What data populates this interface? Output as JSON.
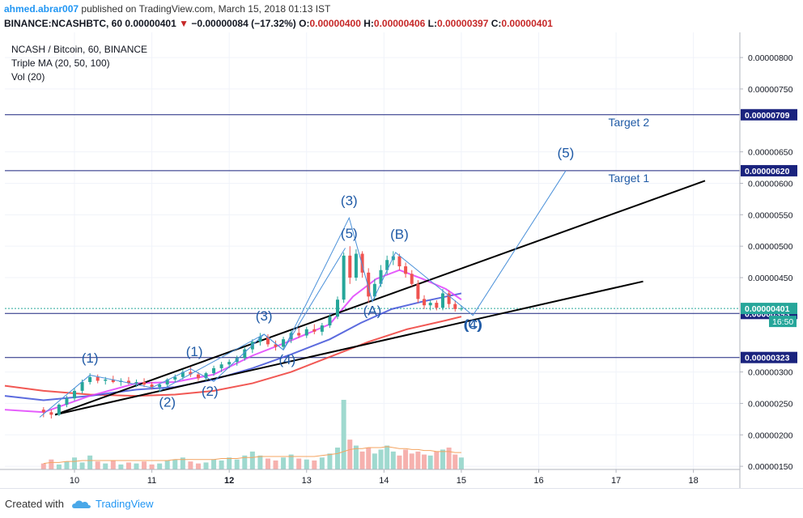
{
  "header": {
    "author": "ahmed.abrar007",
    "published_text": "published on TradingView.com, March 15, 2018 01:13 IST",
    "symbol_line_prefix": "BINANCE:NCASHBTC, 60",
    "last_price": "0.00000401",
    "change_arrow": "▼",
    "change": "−0.00000084 (−17.32%)",
    "open_label": "O:",
    "open": "0.00000400",
    "high_label": "H:",
    "high": "0.00000406",
    "low_label": "L:",
    "low": "0.00000397",
    "close_label": "C:",
    "close": "0.00000401"
  },
  "legend": {
    "symbol": "NCASH / Bitcoin, 60, BINANCE",
    "ma": "Triple MA (20, 50, 100)",
    "vol": "Vol (20)"
  },
  "colors": {
    "up": "#26a69a",
    "down": "#ef5350",
    "ma20": "#e040fb",
    "ma50": "#3f51d8",
    "ma100": "#ef3b36",
    "annotation": "#1f5aa6",
    "wave_line": "#4a90d9",
    "target_line": "#1a237e",
    "vol_up": "#9fd9cf",
    "vol_down": "#f6b1ae"
  },
  "footer": {
    "created_with": "Created with",
    "brand": "TradingView"
  },
  "chart_data": {
    "type": "candlestick",
    "x_tick_labels": [
      "10",
      "11",
      "12",
      "13",
      "14",
      "15",
      "16",
      "17",
      "18"
    ],
    "x_bold_ticks": [
      "12"
    ],
    "x_range": [
      9.1,
      18.6
    ],
    "y_range": [
      1.45e-06,
      8.4e-06
    ],
    "y_tick_labels": [
      "0.00000800",
      "0.00000750",
      "0.00000650",
      "0.00000600",
      "0.00000550",
      "0.00000500",
      "0.00000450",
      "0.00000300",
      "0.00000250",
      "0.00000200",
      "0.00000150"
    ],
    "y_tick_values": [
      8e-06,
      7.5e-06,
      6.5e-06,
      6e-06,
      5.5e-06,
      5e-06,
      4.5e-06,
      3e-06,
      2.5e-06,
      2e-06,
      1.5e-06
    ],
    "horizontal_levels": [
      {
        "value": 7.09e-06,
        "label": "0.00000709",
        "annotation": "Target 2"
      },
      {
        "value": 6.2e-06,
        "label": "0.00000620",
        "annotation": "Target 1"
      },
      {
        "value": 3.93e-06,
        "label": "0.00000393"
      },
      {
        "value": 3.23e-06,
        "label": "0.00000323"
      }
    ],
    "last_price_label": {
      "value": 4.01e-06,
      "label": "0.00000401",
      "countdown": "16:50"
    },
    "trend_lines": [
      [
        [
          9.75,
          2.32e-06
        ],
        [
          17.35,
          4.44e-06
        ]
      ],
      [
        [
          9.75,
          2.32e-06
        ],
        [
          18.15,
          6.04e-06
        ]
      ]
    ],
    "wave_lines": [
      {
        "name": "motive",
        "points": [
          [
            9.55,
            2.28e-06
          ],
          [
            10.2,
            2.95e-06
          ],
          [
            11.0,
            2.75e-06
          ],
          [
            11.5,
            3.05e-06
          ],
          [
            11.8,
            2.85e-06
          ],
          [
            12.45,
            3.6e-06
          ],
          [
            12.7,
            3.35e-06
          ],
          [
            13.55,
            5.45e-06
          ],
          [
            13.85,
            4.12e-06
          ],
          [
            14.15,
            4.9e-06
          ],
          [
            15.15,
            3.9e-06
          ],
          [
            16.35,
            6.2e-06
          ]
        ]
      },
      {
        "name": "inner",
        "points": [
          [
            11.1,
            2.7e-06
          ],
          [
            12.45,
            3.6e-06
          ],
          [
            12.7,
            3.35e-06
          ],
          [
            13.5,
            4.97e-06
          ]
        ]
      }
    ],
    "wave_labels": [
      {
        "text": "(1)",
        "x": 10.2,
        "y": 3.15e-06
      },
      {
        "text": "(2)",
        "x": 11.2,
        "y": 2.45e-06
      },
      {
        "text": "(1)",
        "x": 11.55,
        "y": 3.25e-06
      },
      {
        "text": "(2)",
        "x": 11.75,
        "y": 2.62e-06
      },
      {
        "text": "(3)",
        "x": 12.45,
        "y": 3.82e-06
      },
      {
        "text": "(4)",
        "x": 12.75,
        "y": 3.12e-06
      },
      {
        "text": "(3)",
        "x": 13.55,
        "y": 5.65e-06
      },
      {
        "text": "(5)",
        "x": 13.55,
        "y": 5.13e-06
      },
      {
        "text": "(A)",
        "x": 13.85,
        "y": 3.9e-06
      },
      {
        "text": "(B)",
        "x": 14.2,
        "y": 5.12e-06
      },
      {
        "text": "(4)",
        "x": 15.15,
        "y": 3.68e-06
      },
      {
        "text": "(C)",
        "x": 15.15,
        "y": 3.68e-06
      },
      {
        "text": "(5)",
        "x": 16.35,
        "y": 6.41e-06
      }
    ],
    "candles": [
      [
        9.6,
        2.4e-06,
        2.44e-06,
        2.28e-06,
        2.36e-06
      ],
      [
        9.7,
        2.36e-06,
        2.4e-06,
        2.26e-06,
        2.32e-06
      ],
      [
        9.8,
        2.32e-06,
        2.5e-06,
        2.3e-06,
        2.48e-06
      ],
      [
        9.9,
        2.48e-06,
        2.62e-06,
        2.44e-06,
        2.58e-06
      ],
      [
        10.0,
        2.58e-06,
        2.75e-06,
        2.54e-06,
        2.7e-06
      ],
      [
        10.1,
        2.7e-06,
        2.88e-06,
        2.66e-06,
        2.84e-06
      ],
      [
        10.2,
        2.84e-06,
        2.98e-06,
        2.8e-06,
        2.92e-06
      ],
      [
        10.3,
        2.92e-06,
        2.96e-06,
        2.82e-06,
        2.86e-06
      ],
      [
        10.4,
        2.86e-06,
        2.92e-06,
        2.8e-06,
        2.88e-06
      ],
      [
        10.5,
        2.88e-06,
        2.94e-06,
        2.82e-06,
        2.84e-06
      ],
      [
        10.6,
        2.84e-06,
        2.9e-06,
        2.78e-06,
        2.86e-06
      ],
      [
        10.7,
        2.86e-06,
        2.92e-06,
        2.8e-06,
        2.82e-06
      ],
      [
        10.8,
        2.82e-06,
        2.88e-06,
        2.76e-06,
        2.84e-06
      ],
      [
        10.9,
        2.84e-06,
        2.9e-06,
        2.76e-06,
        2.8e-06
      ],
      [
        11.0,
        2.8e-06,
        2.84e-06,
        2.72e-06,
        2.76e-06
      ],
      [
        11.1,
        2.76e-06,
        2.82e-06,
        2.68e-06,
        2.8e-06
      ],
      [
        11.2,
        2.8e-06,
        2.9e-06,
        2.76e-06,
        2.88e-06
      ],
      [
        11.3,
        2.88e-06,
        2.96e-06,
        2.84e-06,
        2.92e-06
      ],
      [
        11.4,
        2.92e-06,
        3.04e-06,
        2.88e-06,
        3e-06
      ],
      [
        11.5,
        3e-06,
        3.08e-06,
        2.92e-06,
        2.96e-06
      ],
      [
        11.6,
        2.96e-06,
        3e-06,
        2.86e-06,
        2.9e-06
      ],
      [
        11.7,
        2.9e-06,
        3e-06,
        2.86e-06,
        2.98e-06
      ],
      [
        11.8,
        2.98e-06,
        3.1e-06,
        2.94e-06,
        3.06e-06
      ],
      [
        11.9,
        3.06e-06,
        3.16e-06,
        3e-06,
        3.12e-06
      ],
      [
        12.0,
        3.12e-06,
        3.2e-06,
        3.06e-06,
        3.16e-06
      ],
      [
        12.1,
        3.16e-06,
        3.26e-06,
        3.1e-06,
        3.22e-06
      ],
      [
        12.2,
        3.22e-06,
        3.4e-06,
        3.18e-06,
        3.36e-06
      ],
      [
        12.3,
        3.36e-06,
        3.52e-06,
        3.3e-06,
        3.48e-06
      ],
      [
        12.4,
        3.48e-06,
        3.62e-06,
        3.42e-06,
        3.56e-06
      ],
      [
        12.5,
        3.56e-06,
        3.6e-06,
        3.4e-06,
        3.44e-06
      ],
      [
        12.6,
        3.44e-06,
        3.5e-06,
        3.34e-06,
        3.4e-06
      ],
      [
        12.7,
        3.4e-06,
        3.56e-06,
        3.36e-06,
        3.52e-06
      ],
      [
        12.8,
        3.52e-06,
        3.66e-06,
        3.46e-06,
        3.62e-06
      ],
      [
        12.9,
        3.62e-06,
        3.7e-06,
        3.54e-06,
        3.58e-06
      ],
      [
        13.0,
        3.58e-06,
        3.72e-06,
        3.54e-06,
        3.68e-06
      ],
      [
        13.1,
        3.68e-06,
        3.76e-06,
        3.6e-06,
        3.64e-06
      ],
      [
        13.2,
        3.64e-06,
        3.78e-06,
        3.58e-06,
        3.74e-06
      ],
      [
        13.3,
        3.74e-06,
        3.92e-06,
        3.7e-06,
        3.88e-06
      ],
      [
        13.4,
        3.88e-06,
        4.2e-06,
        3.84e-06,
        4.15e-06
      ],
      [
        13.48,
        4.15e-06,
        4.9e-06,
        4.1e-06,
        4.85e-06
      ],
      [
        13.56,
        4.85e-06,
        5e-06,
        4.4e-06,
        4.5e-06
      ],
      [
        13.64,
        4.5e-06,
        4.95e-06,
        4.45e-06,
        4.88e-06
      ],
      [
        13.72,
        4.88e-06,
        4.92e-06,
        4.5e-06,
        4.58e-06
      ],
      [
        13.8,
        4.58e-06,
        4.65e-06,
        4.1e-06,
        4.2e-06
      ],
      [
        13.88,
        4.2e-06,
        4.48e-06,
        4.15e-06,
        4.4e-06
      ],
      [
        13.96,
        4.4e-06,
        4.7e-06,
        4.35e-06,
        4.62e-06
      ],
      [
        14.04,
        4.62e-06,
        4.85e-06,
        4.55e-06,
        4.78e-06
      ],
      [
        14.12,
        4.78e-06,
        4.92e-06,
        4.7e-06,
        4.84e-06
      ],
      [
        14.2,
        4.84e-06,
        4.88e-06,
        4.62e-06,
        4.68e-06
      ],
      [
        14.28,
        4.68e-06,
        4.74e-06,
        4.5e-06,
        4.56e-06
      ],
      [
        14.36,
        4.56e-06,
        4.62e-06,
        4.36e-06,
        4.4e-06
      ],
      [
        14.44,
        4.4e-06,
        4.46e-06,
        4.1e-06,
        4.16e-06
      ],
      [
        14.52,
        4.16e-06,
        4.22e-06,
        4e-06,
        4.06e-06
      ],
      [
        14.6,
        4.06e-06,
        4.14e-06,
        3.98e-06,
        4.1e-06
      ],
      [
        14.68,
        4.1e-06,
        4.14e-06,
        3.98e-06,
        4.02e-06
      ],
      [
        14.76,
        4.02e-06,
        4.32e-06,
        3.98e-06,
        4.25e-06
      ],
      [
        14.84,
        4.25e-06,
        4.3e-06,
        4.02e-06,
        4.08e-06
      ],
      [
        14.92,
        4.08e-06,
        4.14e-06,
        3.96e-06,
        4e-06
      ],
      [
        15.0,
        4e-06,
        4.06e-06,
        3.97e-06,
        4.01e-06
      ]
    ],
    "ma20": [
      [
        9.1,
        2.4e-06
      ],
      [
        9.6,
        2.36e-06
      ],
      [
        10.2,
        2.62e-06
      ],
      [
        10.8,
        2.82e-06
      ],
      [
        11.3,
        2.84e-06
      ],
      [
        11.8,
        2.96e-06
      ],
      [
        12.3,
        3.26e-06
      ],
      [
        12.8,
        3.5e-06
      ],
      [
        13.3,
        3.76e-06
      ],
      [
        13.6,
        4.2e-06
      ],
      [
        13.9,
        4.48e-06
      ],
      [
        14.2,
        4.62e-06
      ],
      [
        14.5,
        4.48e-06
      ],
      [
        14.8,
        4.32e-06
      ],
      [
        15.0,
        4.15e-06
      ]
    ],
    "ma50": [
      [
        9.1,
        2.62e-06
      ],
      [
        9.6,
        2.55e-06
      ],
      [
        10.2,
        2.62e-06
      ],
      [
        10.8,
        2.72e-06
      ],
      [
        11.3,
        2.76e-06
      ],
      [
        11.8,
        2.88e-06
      ],
      [
        12.3,
        3.06e-06
      ],
      [
        12.8,
        3.28e-06
      ],
      [
        13.3,
        3.52e-06
      ],
      [
        13.7,
        3.78e-06
      ],
      [
        14.1,
        4e-06
      ],
      [
        14.5,
        4.12e-06
      ],
      [
        15.0,
        4.25e-06
      ]
    ],
    "ma100": [
      [
        9.1,
        2.78e-06
      ],
      [
        9.6,
        2.7e-06
      ],
      [
        10.2,
        2.64e-06
      ],
      [
        10.8,
        2.62e-06
      ],
      [
        11.3,
        2.64e-06
      ],
      [
        11.8,
        2.7e-06
      ],
      [
        12.3,
        2.82e-06
      ],
      [
        12.8,
        3e-06
      ],
      [
        13.3,
        3.24e-06
      ],
      [
        13.8,
        3.48e-06
      ],
      [
        14.3,
        3.68e-06
      ],
      [
        14.8,
        3.82e-06
      ],
      [
        15.0,
        3.88e-06
      ]
    ],
    "volume": {
      "values": [
        6,
        10,
        5,
        8,
        12,
        7,
        14,
        8,
        6,
        9,
        5,
        7,
        6,
        8,
        5,
        6,
        9,
        10,
        12,
        8,
        6,
        7,
        10,
        9,
        12,
        10,
        14,
        18,
        14,
        11,
        9,
        12,
        15,
        11,
        10,
        9,
        12,
        16,
        22,
        70,
        30,
        24,
        18,
        22,
        16,
        20,
        24,
        18,
        14,
        20,
        16,
        18,
        15,
        14,
        18,
        20,
        22,
        15,
        12
      ],
      "ma_values": [
        6,
        7,
        7,
        8,
        8,
        9,
        9,
        9,
        9,
        9,
        9,
        9,
        9,
        9,
        9,
        9,
        9,
        10,
        10,
        10,
        10,
        10,
        10,
        11,
        11,
        11,
        12,
        12,
        13,
        13,
        13,
        13,
        13,
        13,
        13,
        13,
        14,
        15,
        16,
        18,
        20,
        21,
        21,
        22,
        22,
        22,
        23,
        22,
        21,
        21,
        20,
        20,
        19,
        19,
        18,
        18,
        18,
        17,
        17
      ]
    }
  }
}
